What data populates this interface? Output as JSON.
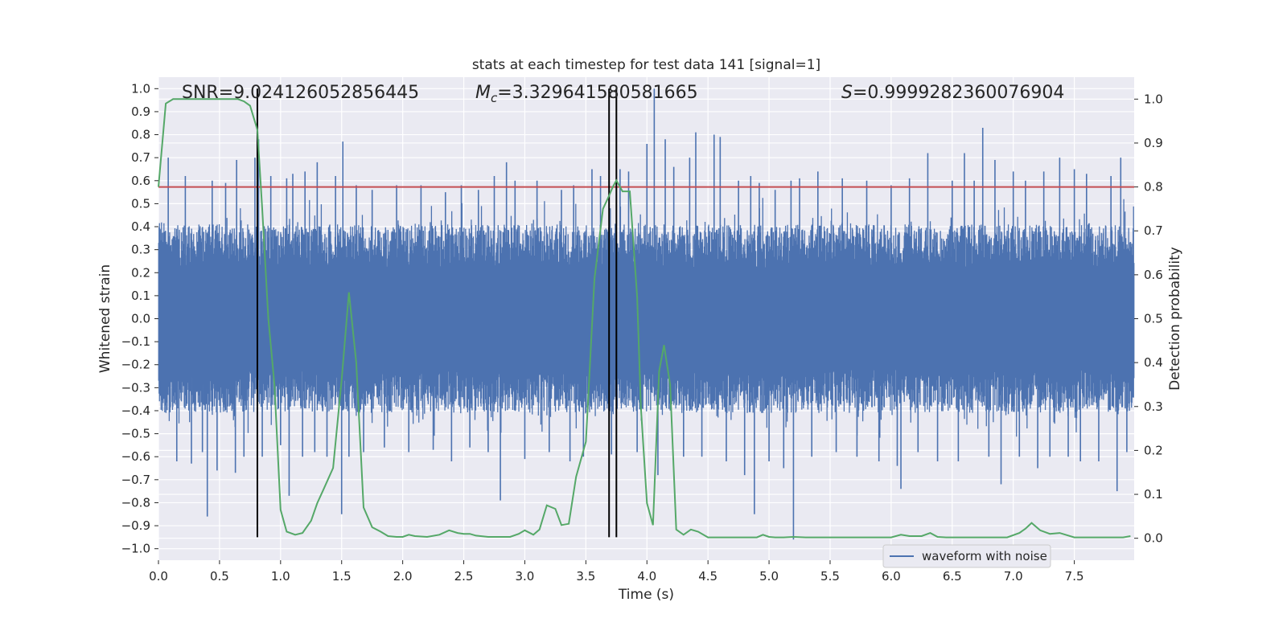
{
  "chart_data": {
    "type": "line",
    "title": "stats at each timestep for test data 141 [signal=1]",
    "xlabel": "Time (s)",
    "ylabel": "Whitened strain",
    "y2label": "Detection probability",
    "xlim": [
      0.0,
      7.99
    ],
    "ylim": [
      -1.05,
      1.05
    ],
    "y2lim": [
      -0.05,
      1.05
    ],
    "x_ticks": [
      "0.0",
      "0.5",
      "1.0",
      "1.5",
      "2.0",
      "2.5",
      "3.0",
      "3.5",
      "4.0",
      "4.5",
      "5.0",
      "5.5",
      "6.0",
      "6.5",
      "7.0",
      "7.5"
    ],
    "y_ticks": [
      "1.0",
      "0.9",
      "0.8",
      "0.7",
      "0.6",
      "0.5",
      "0.4",
      "0.3",
      "0.2",
      "0.1",
      "0.0",
      "−0.1",
      "−0.2",
      "−0.3",
      "−0.4",
      "−0.5",
      "−0.6",
      "−0.7",
      "−0.8",
      "−0.9",
      "−1.0"
    ],
    "y2_ticks": [
      "1.0",
      "0.9",
      "0.8",
      "0.7",
      "0.6",
      "0.5",
      "0.4",
      "0.3",
      "0.2",
      "0.1",
      "0.0"
    ],
    "grid": true,
    "legend": {
      "position": "lower-right",
      "entries": [
        "waveform with noise"
      ]
    },
    "annotations": {
      "snr": "SNR=9.024126052856445",
      "mc_symbol": "M",
      "mc_sub": "c",
      "mc_value": "=3.329641580581665",
      "s_symbol": "S",
      "s_value": "=0.9999282360076904"
    },
    "threshold": {
      "y2": 0.8,
      "color": "#c44e52"
    },
    "vertical_lines": [
      0.81,
      3.69,
      3.75
    ],
    "waveform": {
      "name": "waveform with noise",
      "color": "#4c72b0",
      "envelope": 0.41,
      "spikes": [
        [
          0.08,
          0.7
        ],
        [
          0.15,
          -0.62
        ],
        [
          0.22,
          0.62
        ],
        [
          0.27,
          -0.63
        ],
        [
          0.36,
          -0.58
        ],
        [
          0.4,
          -0.86
        ],
        [
          0.44,
          0.6
        ],
        [
          0.48,
          -0.66
        ],
        [
          0.55,
          0.59
        ],
        [
          0.63,
          -0.67
        ],
        [
          0.64,
          0.69
        ],
        [
          0.7,
          -0.6
        ],
        [
          0.79,
          0.7
        ],
        [
          0.82,
          0.78
        ],
        [
          0.85,
          -0.6
        ],
        [
          0.92,
          0.62
        ],
        [
          1.0,
          -0.55
        ],
        [
          1.05,
          0.61
        ],
        [
          1.07,
          -0.77
        ],
        [
          1.1,
          0.63
        ],
        [
          1.18,
          -0.6
        ],
        [
          1.2,
          0.64
        ],
        [
          1.28,
          -0.58
        ],
        [
          1.3,
          0.68
        ],
        [
          1.38,
          -0.6
        ],
        [
          1.45,
          0.62
        ],
        [
          1.5,
          -0.85
        ],
        [
          1.51,
          0.77
        ],
        [
          1.56,
          -0.6
        ],
        [
          1.62,
          0.58
        ],
        [
          1.68,
          -0.58
        ],
        [
          1.75,
          0.56
        ],
        [
          1.85,
          -0.56
        ],
        [
          1.95,
          0.58
        ],
        [
          2.05,
          -0.58
        ],
        [
          2.15,
          0.58
        ],
        [
          2.25,
          -0.57
        ],
        [
          2.35,
          0.55
        ],
        [
          2.4,
          -0.62
        ],
        [
          2.48,
          0.58
        ],
        [
          2.55,
          -0.56
        ],
        [
          2.62,
          0.56
        ],
        [
          2.7,
          -0.58
        ],
        [
          2.75,
          0.62
        ],
        [
          2.8,
          -0.79
        ],
        [
          2.85,
          0.68
        ],
        [
          2.92,
          0.6
        ],
        [
          3.0,
          -0.61
        ],
        [
          3.1,
          0.6
        ],
        [
          3.2,
          -0.58
        ],
        [
          3.3,
          0.56
        ],
        [
          3.37,
          -0.62
        ],
        [
          3.4,
          0.58
        ],
        [
          3.48,
          -0.6
        ],
        [
          3.55,
          0.65
        ],
        [
          3.62,
          0.62
        ],
        [
          3.71,
          -0.59
        ],
        [
          3.78,
          0.65
        ],
        [
          3.85,
          0.64
        ],
        [
          3.92,
          -0.58
        ],
        [
          4.0,
          0.76
        ],
        [
          4.06,
          1.0
        ],
        [
          4.09,
          -0.68
        ],
        [
          4.15,
          0.78
        ],
        [
          4.22,
          0.66
        ],
        [
          4.3,
          -0.6
        ],
        [
          4.35,
          0.7
        ],
        [
          4.4,
          0.81
        ],
        [
          4.45,
          -0.6
        ],
        [
          4.55,
          0.8
        ],
        [
          4.6,
          0.79
        ],
        [
          4.65,
          -0.62
        ],
        [
          4.75,
          0.6
        ],
        [
          4.8,
          -0.68
        ],
        [
          4.85,
          0.62
        ],
        [
          4.88,
          -0.85
        ],
        [
          4.92,
          0.59
        ],
        [
          5.0,
          -0.62
        ],
        [
          5.05,
          0.56
        ],
        [
          5.12,
          -0.65
        ],
        [
          5.18,
          0.6
        ],
        [
          5.2,
          -0.96
        ],
        [
          5.25,
          0.61
        ],
        [
          5.35,
          -0.6
        ],
        [
          5.4,
          0.64
        ],
        [
          5.55,
          -0.58
        ],
        [
          5.6,
          0.61
        ],
        [
          5.72,
          -0.6
        ],
        [
          5.8,
          0.6
        ],
        [
          5.9,
          -0.62
        ],
        [
          6.0,
          0.58
        ],
        [
          6.05,
          -0.64
        ],
        [
          6.08,
          -0.74
        ],
        [
          6.15,
          0.61
        ],
        [
          6.22,
          -0.58
        ],
        [
          6.3,
          0.72
        ],
        [
          6.38,
          -0.62
        ],
        [
          6.5,
          0.6
        ],
        [
          6.55,
          -0.62
        ],
        [
          6.6,
          0.72
        ],
        [
          6.68,
          0.6
        ],
        [
          6.75,
          0.83
        ],
        [
          6.8,
          -0.6
        ],
        [
          6.85,
          0.69
        ],
        [
          6.9,
          -0.72
        ],
        [
          7.0,
          0.64
        ],
        [
          7.05,
          -0.6
        ],
        [
          7.1,
          0.6
        ],
        [
          7.2,
          -0.65
        ],
        [
          7.25,
          0.64
        ],
        [
          7.3,
          -0.6
        ],
        [
          7.38,
          0.7
        ],
        [
          7.45,
          -0.6
        ],
        [
          7.5,
          0.65
        ],
        [
          7.55,
          -0.62
        ],
        [
          7.6,
          0.63
        ],
        [
          7.7,
          -0.62
        ],
        [
          7.8,
          0.62
        ],
        [
          7.85,
          -0.75
        ],
        [
          7.88,
          0.7
        ],
        [
          7.93,
          -0.58
        ]
      ]
    },
    "probability": {
      "color": "#55a868",
      "x": [
        0.0,
        0.06,
        0.12,
        0.2,
        0.3,
        0.4,
        0.5,
        0.55,
        0.6,
        0.65,
        0.7,
        0.75,
        0.81,
        0.85,
        0.9,
        0.95,
        1.0,
        1.05,
        1.12,
        1.18,
        1.25,
        1.3,
        1.35,
        1.43,
        1.5,
        1.56,
        1.62,
        1.68,
        1.75,
        1.82,
        1.88,
        1.95,
        2.0,
        2.05,
        2.1,
        2.2,
        2.3,
        2.38,
        2.45,
        2.5,
        2.55,
        2.6,
        2.7,
        2.8,
        2.88,
        2.95,
        3.0,
        3.07,
        3.12,
        3.18,
        3.25,
        3.3,
        3.36,
        3.42,
        3.5,
        3.57,
        3.64,
        3.69,
        3.72,
        3.75,
        3.8,
        3.86,
        3.92,
        3.95,
        4.0,
        4.05,
        4.1,
        4.14,
        4.19,
        4.24,
        4.3,
        4.36,
        4.42,
        4.5,
        4.6,
        4.7,
        4.8,
        4.9,
        4.95,
        5.0,
        5.05,
        5.12,
        5.2,
        5.3,
        5.4,
        5.5,
        5.6,
        5.7,
        5.8,
        5.9,
        6.0,
        6.08,
        6.15,
        6.25,
        6.32,
        6.38,
        6.45,
        6.55,
        6.65,
        6.8,
        6.95,
        7.05,
        7.1,
        7.15,
        7.22,
        7.3,
        7.38,
        7.5,
        7.6,
        7.7,
        7.8,
        7.9,
        7.96
      ],
      "y": [
        0.8,
        0.99,
        1.0,
        1.0,
        1.0,
        1.0,
        1.0,
        1.0,
        1.0,
        1.0,
        0.995,
        0.985,
        0.93,
        0.75,
        0.5,
        0.35,
        0.065,
        0.015,
        0.008,
        0.012,
        0.04,
        0.08,
        0.11,
        0.16,
        0.36,
        0.56,
        0.4,
        0.07,
        0.025,
        0.015,
        0.005,
        0.003,
        0.003,
        0.008,
        0.005,
        0.003,
        0.008,
        0.018,
        0.012,
        0.01,
        0.01,
        0.006,
        0.003,
        0.003,
        0.003,
        0.01,
        0.018,
        0.008,
        0.02,
        0.075,
        0.067,
        0.03,
        0.033,
        0.14,
        0.22,
        0.59,
        0.75,
        0.78,
        0.8,
        0.815,
        0.79,
        0.79,
        0.55,
        0.3,
        0.08,
        0.03,
        0.38,
        0.44,
        0.35,
        0.02,
        0.008,
        0.02,
        0.015,
        0.002,
        0.002,
        0.002,
        0.002,
        0.002,
        0.008,
        0.003,
        0.002,
        0.002,
        0.003,
        0.002,
        0.002,
        0.002,
        0.002,
        0.002,
        0.002,
        0.002,
        0.002,
        0.008,
        0.005,
        0.005,
        0.012,
        0.003,
        0.002,
        0.002,
        0.002,
        0.002,
        0.002,
        0.012,
        0.022,
        0.035,
        0.018,
        0.01,
        0.012,
        0.002,
        0.002,
        0.002,
        0.002,
        0.002,
        0.005
      ]
    }
  }
}
